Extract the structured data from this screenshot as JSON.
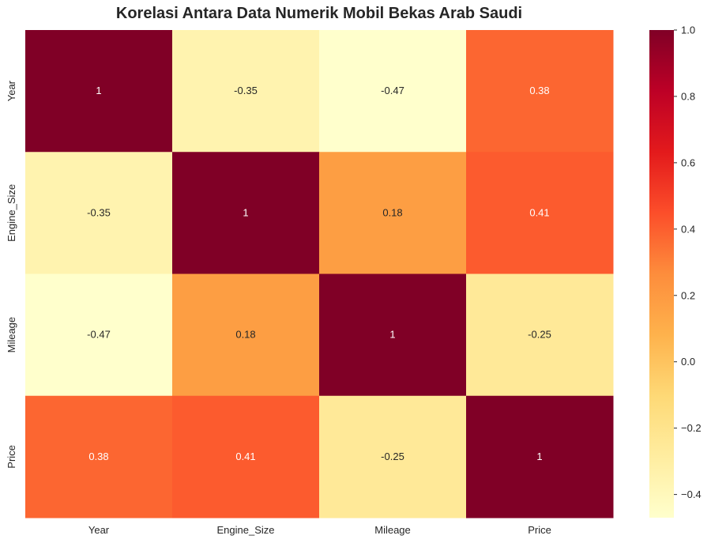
{
  "chart_data": {
    "type": "heatmap",
    "title": "Korelasi Antara Data Numerik Mobil Bekas Arab Saudi",
    "rows": [
      "Year",
      "Engine_Size",
      "Mileage",
      "Price"
    ],
    "columns": [
      "Year",
      "Engine_Size",
      "Mileage",
      "Price"
    ],
    "values": [
      [
        1,
        -0.35,
        -0.47,
        0.38
      ],
      [
        -0.35,
        1,
        0.18,
        0.41
      ],
      [
        -0.47,
        0.18,
        1,
        -0.25
      ],
      [
        0.38,
        0.41,
        -0.25,
        1
      ]
    ],
    "value_labels": [
      [
        "1",
        "-0.35",
        "-0.47",
        "0.38"
      ],
      [
        "-0.35",
        "1",
        "0.18",
        "0.41"
      ],
      [
        "-0.47",
        "0.18",
        "1",
        "-0.25"
      ],
      [
        "0.38",
        "0.41",
        "-0.25",
        "1"
      ]
    ],
    "colormap": "YlOrRd",
    "vmin": -0.47,
    "vmax": 1,
    "colorbar_ticks": [
      1.0,
      0.8,
      0.6,
      0.4,
      0.2,
      0.0,
      -0.2,
      -0.4
    ],
    "colorbar_tick_labels": [
      "1.0",
      "0.8",
      "0.6",
      "0.4",
      "0.2",
      "0.0",
      "−0.2",
      "−0.4"
    ],
    "annotations": true,
    "grid": false
  }
}
